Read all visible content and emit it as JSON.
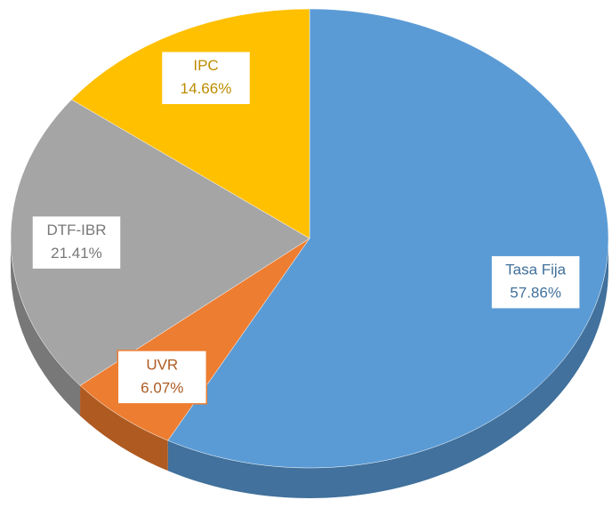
{
  "chart_data": {
    "type": "pie",
    "categories": [
      "Tasa Fija",
      "UVR",
      "DTF-IBR",
      "IPC"
    ],
    "values": [
      57.86,
      6.07,
      21.41,
      14.66
    ],
    "value_labels": [
      "57.86%",
      "6.07%",
      "21.41%",
      "14.66%"
    ],
    "colors": [
      "#5b9bd5",
      "#ed7d31",
      "#a5a5a5",
      "#ffc000"
    ],
    "side_colors": [
      "#41719c",
      "#ae5a21",
      "#787878",
      "#bc8c00"
    ]
  }
}
